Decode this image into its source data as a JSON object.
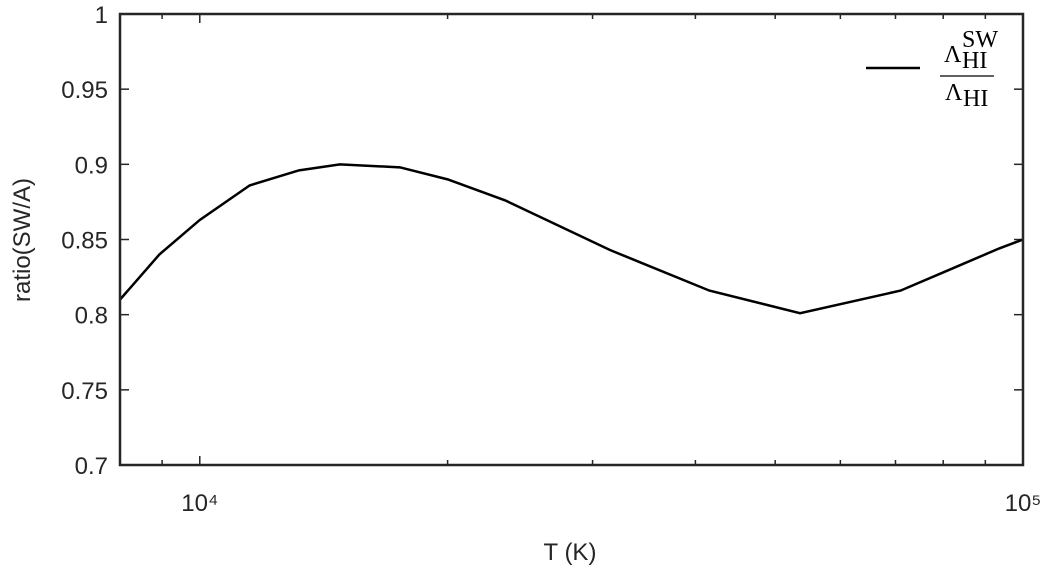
{
  "chart_data": {
    "type": "line",
    "xlabel": "T (K)",
    "ylabel": "ratio(SW/A)",
    "xscale": "log",
    "xlim": [
      8000,
      100000
    ],
    "xticks": [
      {
        "value": 10000,
        "label": "10⁴"
      },
      {
        "value": 100000,
        "label": "10⁵"
      }
    ],
    "xminorticks": [
      9000,
      20000,
      30000,
      40000,
      50000,
      60000,
      70000,
      80000,
      90000
    ],
    "ylim": [
      0.7,
      1
    ],
    "yticks": [
      0.7,
      0.75,
      0.8,
      0.85,
      0.9,
      0.95,
      1
    ],
    "legend": "upper right",
    "x": [
      8000,
      8930,
      10000,
      11500,
      13200,
      14800,
      17500,
      20000,
      23500,
      31500,
      41600,
      53600,
      71000,
      81500,
      93500,
      100000
    ],
    "series": [
      {
        "name": {
          "numerator": "Λ",
          "numerator_sup": "SW",
          "numerator_sub": "HI",
          "denominator": "Λ",
          "denominator_sub": "HI"
        },
        "color": "#000000",
        "values": [
          0.81,
          0.84,
          0.863,
          0.886,
          0.896,
          0.9,
          0.898,
          0.89,
          0.876,
          0.843,
          0.816,
          0.801,
          0.816,
          0.83,
          0.844,
          0.85
        ]
      }
    ]
  }
}
